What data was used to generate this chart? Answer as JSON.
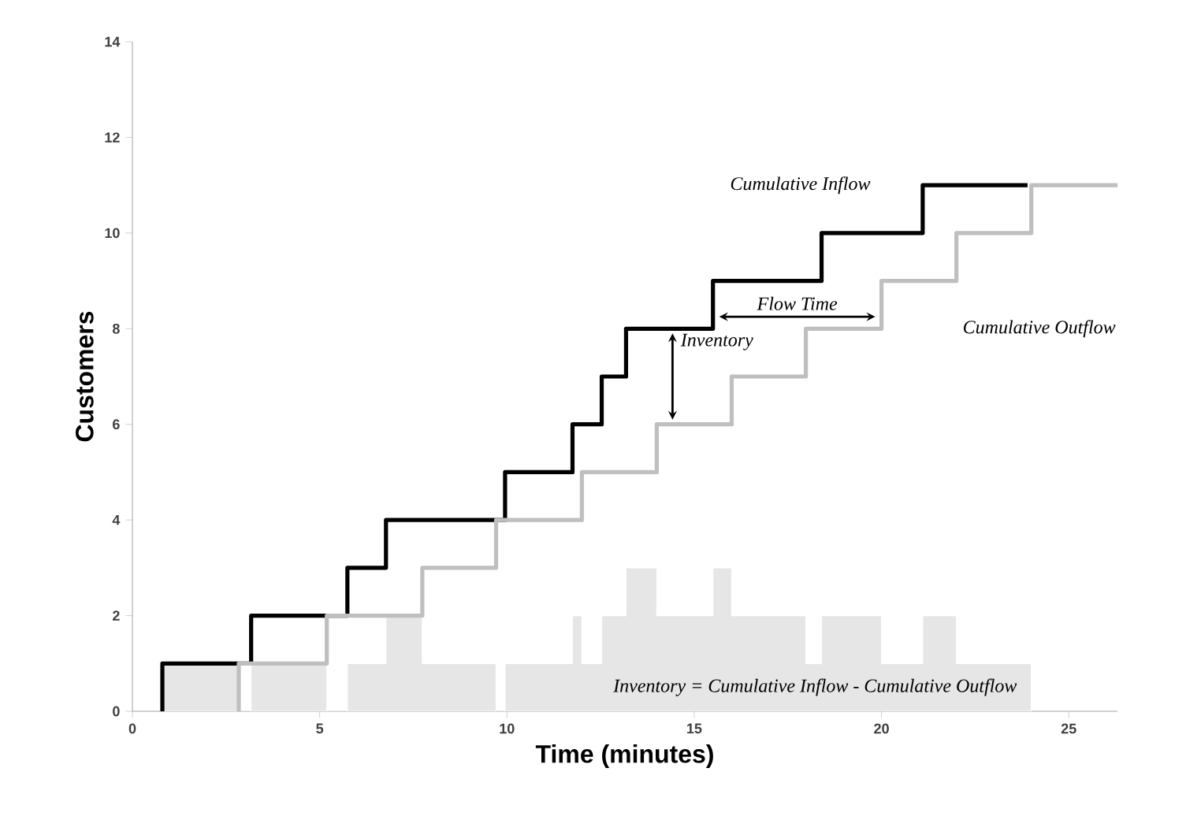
{
  "chart_data": {
    "type": "step",
    "xlabel": "Time (minutes)",
    "ylabel": "Customers",
    "xlim": [
      0,
      26.3
    ],
    "ylim": [
      0,
      14
    ],
    "xticks": [
      0,
      5,
      10,
      15,
      20,
      25
    ],
    "yticks": [
      0,
      2,
      4,
      6,
      8,
      10,
      12,
      14
    ],
    "grid": false,
    "series": [
      {
        "type": "area",
        "name": "Inventory = Cumulative Inflow - Cumulative Outflow",
        "color": "#e6e6e6",
        "x": [
          0.8,
          2.84,
          3.17,
          5.19,
          5.74,
          6.77,
          7.74,
          9.71,
          9.95,
          11.75,
          12.0,
          12.53,
          13.18,
          14.0,
          15.5,
          16.0,
          17.98,
          18.4,
          20.0,
          21.1,
          22.0,
          24.0
        ],
        "values": [
          1,
          0,
          1,
          0,
          1,
          2,
          1,
          0,
          1,
          2,
          1,
          2,
          3,
          2,
          3,
          2,
          1,
          2,
          1,
          2,
          1,
          0
        ]
      },
      {
        "name": "Cumulative Inflow",
        "color": "#000000",
        "x": [
          0.8,
          0.8,
          3.17,
          5.74,
          6.77,
          9.95,
          11.75,
          12.53,
          13.18,
          15.5,
          18.4,
          21.1,
          23.9
        ],
        "values": [
          0,
          1,
          2,
          3,
          4,
          5,
          6,
          7,
          8,
          9,
          10,
          11,
          11
        ]
      },
      {
        "color": "#bfbfbf",
        "x": [
          2.84,
          2.84,
          5.19,
          7.74,
          9.71,
          12.0,
          14.0,
          16.0,
          17.98,
          20.0,
          22.0,
          24.0,
          26.3
        ],
        "values": [
          0,
          1,
          2,
          3,
          4,
          5,
          6,
          7,
          8,
          9,
          10,
          11,
          11
        ]
      }
    ],
    "annotations": [
      "Flow Time",
      "Inventory",
      "Cumulative Outflow"
    ]
  }
}
